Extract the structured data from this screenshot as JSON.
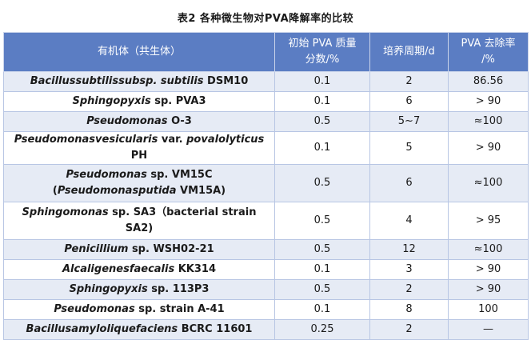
{
  "title": "表2    各种微生物对PVA降解率的比较",
  "headers": {
    "organism": "有机体（共生体）",
    "concentration_line1": "初始 PVA 质量",
    "concentration_line2": "分数/%",
    "period": "培养周期/d",
    "removal_line1": "PVA 去除率",
    "removal_line2": "/%"
  },
  "rows": [
    {
      "name_parts": [
        {
          "t": "Bacillussubtilissubsp. subtilis",
          "i": true
        },
        {
          "t": " DSM10",
          "i": false
        }
      ],
      "concentration": "0.1",
      "period": "2",
      "removal": "86.56"
    },
    {
      "name_parts": [
        {
          "t": "Sphingopyxis",
          "i": true
        },
        {
          "t": " sp. PVA3",
          "i": false
        }
      ],
      "concentration": "0.1",
      "period": "6",
      "removal": "> 90"
    },
    {
      "name_parts": [
        {
          "t": "Pseudomonas",
          "i": true
        },
        {
          "t": " O-3",
          "i": false
        }
      ],
      "concentration": "0.5",
      "period": "5~7",
      "removal": "≈100"
    },
    {
      "name_parts": [
        {
          "t": "Pseudomonasvesicularis",
          "i": true
        },
        {
          "t": " var. ",
          "i": false
        },
        {
          "t": "povalolyticus",
          "i": true
        },
        {
          "t": " PH",
          "i": false
        }
      ],
      "concentration": "0.1",
      "period": "5",
      "removal": "> 90"
    },
    {
      "name_parts": [
        {
          "t": "Pseudomonas",
          "i": true
        },
        {
          "t": " sp. VM15C",
          "i": false
        },
        {
          "t": "\n(",
          "i": false
        },
        {
          "t": "Pseudomonasputida",
          "i": true
        },
        {
          "t": " VM15A)",
          "i": false
        }
      ],
      "concentration": "0.5",
      "period": "6",
      "removal": "≈100",
      "tall": true
    },
    {
      "name_parts": [
        {
          "t": "Sphingomonas",
          "i": true
        },
        {
          "t": " sp. SA3（bacterial strain\nSA2)",
          "i": false
        }
      ],
      "concentration": "0.5",
      "period": "4",
      "removal": "> 95",
      "tall": true
    },
    {
      "name_parts": [
        {
          "t": "Penicillium",
          "i": true
        },
        {
          "t": " sp. WSH02-21",
          "i": false
        }
      ],
      "concentration": "0.5",
      "period": "12",
      "removal": "≈100"
    },
    {
      "name_parts": [
        {
          "t": "Alcaligenesfaecalis",
          "i": true
        },
        {
          "t": " KK314",
          "i": false
        }
      ],
      "concentration": "0.1",
      "period": "3",
      "removal": "> 90"
    },
    {
      "name_parts": [
        {
          "t": "Sphingopyxis",
          "i": true
        },
        {
          "t": " sp. 113P3",
          "i": false
        }
      ],
      "concentration": "0.5",
      "period": "2",
      "removal": "> 90"
    },
    {
      "name_parts": [
        {
          "t": "Pseudomonas",
          "i": true
        },
        {
          "t": " sp. strain A-41",
          "i": false
        }
      ],
      "concentration": "0.1",
      "period": "8",
      "removal": "100"
    },
    {
      "name_parts": [
        {
          "t": "Bacillusamyloliquefaciens",
          "i": true
        },
        {
          "t": " BCRC 11601",
          "i": false
        }
      ],
      "concentration": "0.25",
      "period": "2",
      "removal": "—"
    }
  ]
}
